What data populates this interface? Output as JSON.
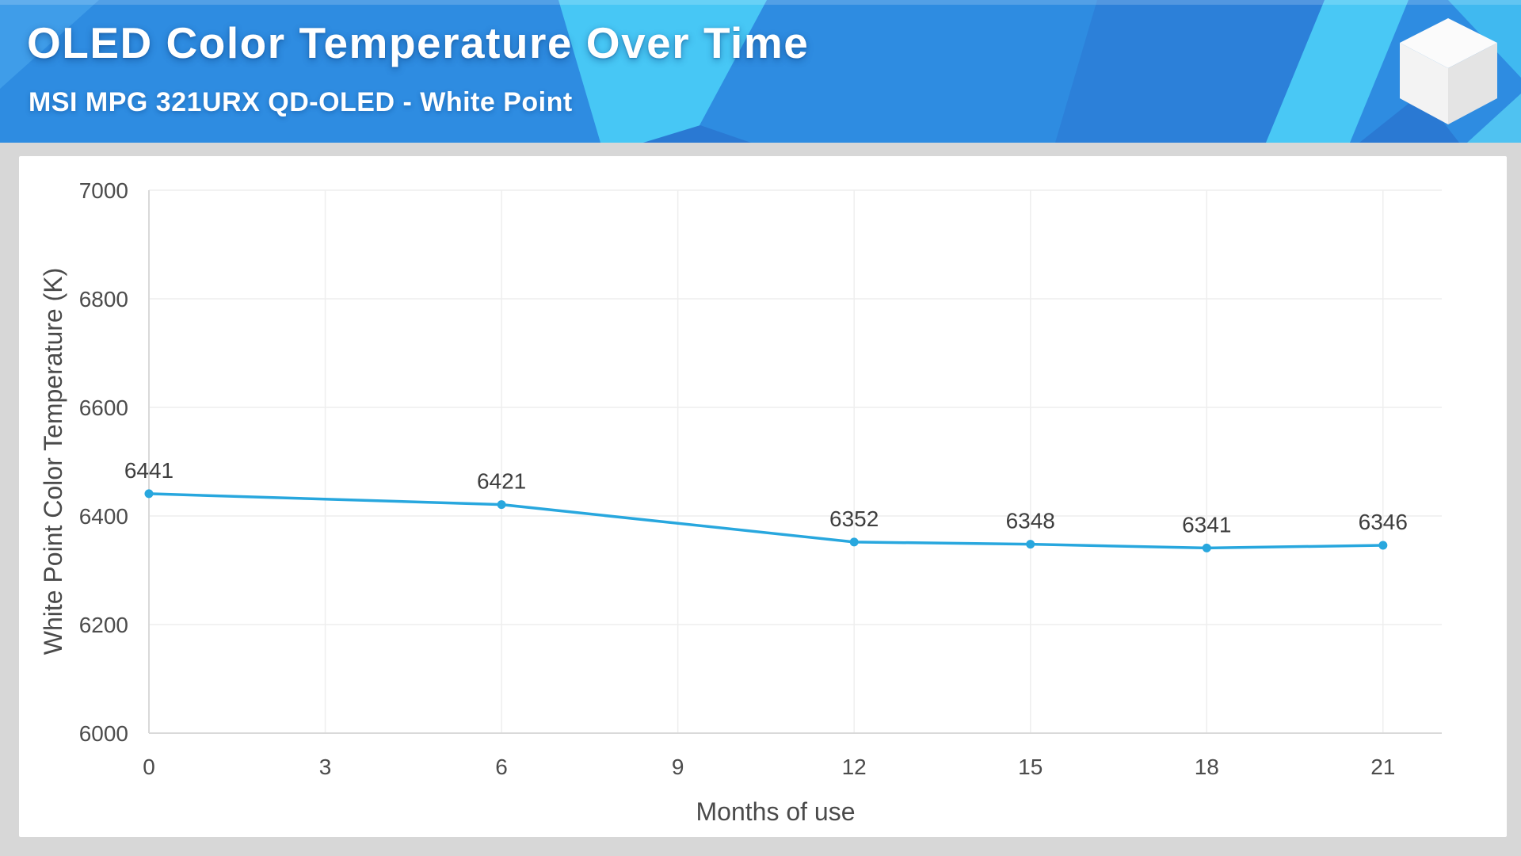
{
  "header": {
    "title": "OLED Color Temperature Over Time",
    "subtitle": "MSI MPG 321URX QD-OLED - White Point",
    "logo": "white-cube-logo"
  },
  "palette": {
    "page_background": "#d7d7d7",
    "card_background": "#ffffff",
    "header_base": "#2e8ce1",
    "header_light": "#3f9de9",
    "header_cyan": "#47c7f5",
    "header_cyan_sliver": "#49c8f5",
    "header_corner_cyan_top": "#40b9f0",
    "header_corner_cyan_bottom": "#4fc2f1",
    "header_dark_stripe": "#2c80d9",
    "header_dark_accent": "#2a79d3",
    "cube_top": "#fbfbfb",
    "cube_left": "#f3f3f3",
    "cube_right": "#e4e4e4"
  },
  "chart_data": {
    "type": "line",
    "title": "OLED Color Temperature Over Time",
    "x": [
      0,
      6,
      12,
      15,
      18,
      21
    ],
    "values": [
      6441,
      6421,
      6352,
      6348,
      6341,
      6346
    ],
    "x_ticks": [
      0,
      3,
      6,
      9,
      12,
      15,
      18,
      21
    ],
    "y_ticks": [
      6000,
      6200,
      6400,
      6600,
      6800,
      7000
    ],
    "xlim": [
      0,
      22
    ],
    "ylim": [
      6000,
      7000
    ],
    "xlabel": "Months of use",
    "ylabel": "White Point Color Temperature (K)",
    "grid": true,
    "legend": "none",
    "point_labels_shown": true,
    "line_color": "#28a7de",
    "point_color": "#28a7de",
    "grid_color": "#eeeeee",
    "axis_line_color": "#d9d9d9",
    "tick_color": "#4c4c4c",
    "data_label_color": "#3e3e3e",
    "axis_title_color": "#4a4a4a"
  }
}
